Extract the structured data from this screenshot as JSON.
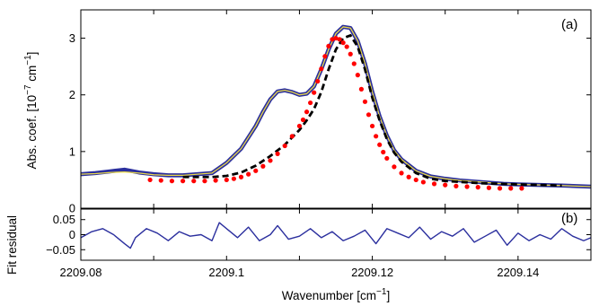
{
  "chart_data": [
    {
      "panel": "(a)",
      "type": "line",
      "ylabel": {
        "main": "Abs. coef. [10",
        "sup1": "−7",
        "mid": " cm",
        "sup2": "−1",
        "end": "]"
      },
      "xlim": [
        2209.08,
        2209.15
      ],
      "ylim": [
        0,
        3.5
      ],
      "xticks": [
        2209.08,
        2209.09,
        2209.1,
        2209.11,
        2209.12,
        2209.13,
        2209.14
      ],
      "yticks": [
        0,
        1,
        2,
        3
      ],
      "ytick_labels": [
        "0",
        "1",
        "2",
        "3"
      ],
      "grid": false,
      "series": [
        {
          "style": "blue-thick-line",
          "color": "#2b2f9e",
          "x": [
            2209.08,
            2209.082,
            2209.084,
            2209.086,
            2209.088,
            2209.09,
            2209.092,
            2209.094,
            2209.096,
            2209.098,
            2209.1,
            2209.102,
            2209.104,
            2209.105,
            2209.106,
            2209.107,
            2209.108,
            2209.109,
            2209.11,
            2209.111,
            2209.112,
            2209.113,
            2209.114,
            2209.115,
            2209.116,
            2209.117,
            2209.118,
            2209.119,
            2209.12,
            2209.121,
            2209.122,
            2209.123,
            2209.124,
            2209.126,
            2209.128,
            2209.13,
            2209.132,
            2209.135,
            2209.138,
            2209.14,
            2209.143,
            2209.146,
            2209.15
          ],
          "y": [
            0.6,
            0.62,
            0.65,
            0.68,
            0.63,
            0.6,
            0.58,
            0.58,
            0.6,
            0.62,
            0.8,
            1.05,
            1.45,
            1.7,
            1.92,
            2.06,
            2.08,
            2.05,
            2.0,
            2.02,
            2.15,
            2.45,
            2.8,
            3.08,
            3.2,
            3.18,
            2.95,
            2.55,
            2.05,
            1.62,
            1.28,
            1.02,
            0.86,
            0.66,
            0.56,
            0.52,
            0.49,
            0.46,
            0.43,
            0.42,
            0.41,
            0.4,
            0.38
          ]
        },
        {
          "style": "yellow-fit-line",
          "color": "#e8d84a",
          "x": [
            2209.08,
            2209.082,
            2209.084,
            2209.086,
            2209.088,
            2209.09,
            2209.092,
            2209.094,
            2209.096,
            2209.098,
            2209.1,
            2209.102,
            2209.104,
            2209.105,
            2209.106,
            2209.107,
            2209.108,
            2209.109,
            2209.11,
            2209.111,
            2209.112,
            2209.113,
            2209.114,
            2209.115,
            2209.116,
            2209.117,
            2209.118,
            2209.119,
            2209.12,
            2209.121,
            2209.122,
            2209.123,
            2209.124,
            2209.126,
            2209.128,
            2209.13,
            2209.132,
            2209.135,
            2209.138,
            2209.14,
            2209.143,
            2209.146,
            2209.15
          ],
          "y": [
            0.6,
            0.61,
            0.63,
            0.64,
            0.62,
            0.59,
            0.58,
            0.58,
            0.6,
            0.62,
            0.8,
            1.05,
            1.45,
            1.7,
            1.92,
            2.06,
            2.08,
            2.05,
            2.0,
            2.02,
            2.15,
            2.45,
            2.8,
            3.08,
            3.2,
            3.18,
            2.95,
            2.55,
            2.05,
            1.62,
            1.28,
            1.02,
            0.86,
            0.66,
            0.56,
            0.52,
            0.49,
            0.46,
            0.43,
            0.42,
            0.41,
            0.4,
            0.38
          ]
        },
        {
          "style": "black-dashed-line",
          "color": "#000000",
          "x": [
            2209.094,
            2209.098,
            2209.1,
            2209.102,
            2209.104,
            2209.106,
            2209.108,
            2209.11,
            2209.111,
            2209.112,
            2209.113,
            2209.114,
            2209.115,
            2209.116,
            2209.117,
            2209.118,
            2209.119,
            2209.12,
            2209.121,
            2209.122,
            2209.123,
            2209.124,
            2209.126,
            2209.128,
            2209.13,
            2209.135,
            2209.14,
            2209.146
          ],
          "y": [
            0.55,
            0.55,
            0.57,
            0.63,
            0.75,
            0.92,
            1.12,
            1.38,
            1.55,
            1.75,
            2.05,
            2.45,
            2.8,
            3.0,
            3.05,
            2.85,
            2.45,
            1.95,
            1.55,
            1.22,
            0.98,
            0.82,
            0.62,
            0.52,
            0.48,
            0.44,
            0.42,
            0.4
          ]
        },
        {
          "style": "red-dots",
          "color": "#ff0000",
          "x": [
            2209.0895,
            2209.091,
            2209.0925,
            2209.094,
            2209.0955,
            2209.097,
            2209.0985,
            2209.1,
            2209.101,
            2209.102,
            2209.103,
            2209.104,
            2209.105,
            2209.106,
            2209.107,
            2209.108,
            2209.109,
            2209.11,
            2209.1105,
            2209.111,
            2209.1115,
            2209.112,
            2209.1125,
            2209.113,
            2209.1135,
            2209.114,
            2209.1145,
            2209.115,
            2209.1155,
            2209.116,
            2209.1165,
            2209.117,
            2209.1175,
            2209.118,
            2209.1185,
            2209.119,
            2209.1195,
            2209.12,
            2209.1205,
            2209.121,
            2209.1215,
            2209.122,
            2209.123,
            2209.124,
            2209.125,
            2209.126,
            2209.127,
            2209.1285,
            2209.13,
            2209.1315,
            2209.133,
            2209.1345,
            2209.136,
            2209.1375,
            2209.139,
            2209.1405
          ],
          "y": [
            0.5,
            0.49,
            0.48,
            0.48,
            0.48,
            0.48,
            0.49,
            0.5,
            0.52,
            0.55,
            0.6,
            0.66,
            0.74,
            0.84,
            0.96,
            1.1,
            1.27,
            1.45,
            1.56,
            1.7,
            1.86,
            2.04,
            2.24,
            2.46,
            2.68,
            2.86,
            2.98,
            3.0,
            2.98,
            2.92,
            2.85,
            2.72,
            2.55,
            2.35,
            2.1,
            1.88,
            1.65,
            1.45,
            1.27,
            1.12,
            0.99,
            0.88,
            0.73,
            0.62,
            0.55,
            0.5,
            0.46,
            0.43,
            0.41,
            0.39,
            0.38,
            0.37,
            0.36,
            0.35,
            0.35,
            0.35
          ]
        }
      ]
    },
    {
      "panel": "(b)",
      "type": "line",
      "ylabel": "Fit residual",
      "xlabel": {
        "main": "Wavenumber [cm",
        "sup": "−1",
        "end": "]"
      },
      "xlim": [
        2209.08,
        2209.15
      ],
      "ylim": [
        -0.085,
        0.085
      ],
      "xticks": [
        2209.08,
        2209.09,
        2209.1,
        2209.11,
        2209.12,
        2209.13,
        2209.14
      ],
      "xtick_labels": [
        "2209.08",
        "2209.1",
        "2209.12",
        "2209.14"
      ],
      "xtick_label_values": [
        2209.08,
        2209.1,
        2209.12,
        2209.14
      ],
      "yticks": [
        0.05,
        0,
        -0.05
      ],
      "ytick_labels": [
        "0.05",
        "0",
        "−0.05"
      ],
      "grid": false,
      "series": [
        {
          "style": "blue-residual",
          "color": "#2b2f9e",
          "x": [
            2209.08,
            2209.0815,
            2209.083,
            2209.0845,
            2209.086,
            2209.0868,
            2209.0875,
            2209.089,
            2209.0905,
            2209.092,
            2209.0935,
            2209.095,
            2209.0965,
            2209.098,
            2209.099,
            2209.1,
            2209.1015,
            2209.103,
            2209.1045,
            2209.106,
            2209.107,
            2209.1085,
            2209.11,
            2209.1115,
            2209.113,
            2209.1145,
            2209.116,
            2209.1175,
            2209.119,
            2209.1205,
            2209.122,
            2209.1235,
            2209.125,
            2209.1265,
            2209.128,
            2209.1295,
            2209.131,
            2209.1325,
            2209.134,
            2209.1355,
            2209.137,
            2209.1385,
            2209.14,
            2209.1415,
            2209.143,
            2209.1445,
            2209.146,
            2209.1475,
            2209.149,
            2209.15
          ],
          "y": [
            -0.01,
            0.01,
            0.02,
            0.0,
            -0.03,
            -0.045,
            -0.01,
            0.02,
            0.005,
            -0.02,
            0.01,
            -0.005,
            0.0,
            -0.02,
            0.04,
            0.02,
            -0.01,
            0.025,
            -0.02,
            0.0,
            0.03,
            -0.015,
            -0.005,
            0.02,
            -0.01,
            0.01,
            -0.02,
            -0.005,
            0.015,
            -0.03,
            0.02,
            0.005,
            -0.01,
            0.025,
            -0.015,
            0.01,
            -0.005,
            0.02,
            -0.025,
            -0.005,
            0.015,
            -0.035,
            0.005,
            -0.02,
            0.0,
            -0.015,
            0.02,
            -0.005,
            -0.02,
            -0.01
          ]
        }
      ]
    }
  ]
}
